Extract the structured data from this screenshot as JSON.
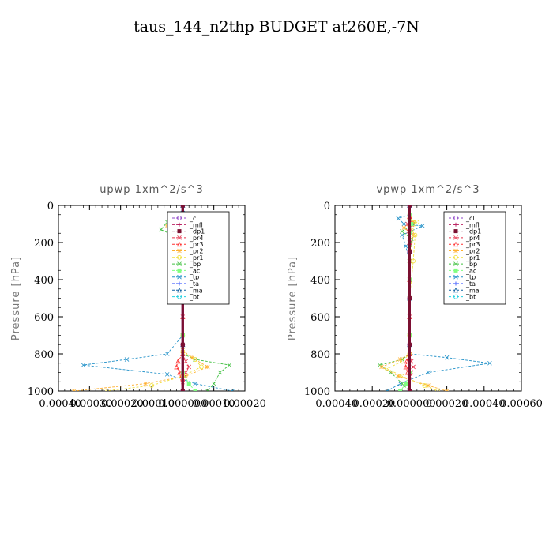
{
  "figure_title": "taus_144_n2thp  BUDGET at260E,-7N",
  "ylabel": "Pressure [hPa]",
  "legend": [
    {
      "name": "_cl",
      "color": "#8e44c8",
      "marker": "circle"
    },
    {
      "name": "_mfl",
      "color": "#b0004a",
      "marker": "plus"
    },
    {
      "name": "_dp1",
      "color": "#7a1030",
      "marker": "square"
    },
    {
      "name": "_pr4",
      "color": "#e8304a",
      "marker": "x"
    },
    {
      "name": "_pr3",
      "color": "#ff3030",
      "marker": "tri"
    },
    {
      "name": "_pr2",
      "color": "#ffb030",
      "marker": "star"
    },
    {
      "name": "_pr1",
      "color": "#f0e040",
      "marker": "circle"
    },
    {
      "name": "_bp",
      "color": "#40c040",
      "marker": "x"
    },
    {
      "name": "_ac",
      "color": "#80ff80",
      "marker": "square"
    },
    {
      "name": "_tp",
      "color": "#2090c8",
      "marker": "x"
    },
    {
      "name": "_ta",
      "color": "#2040ff",
      "marker": "plus"
    },
    {
      "name": "_ma",
      "color": "#1060a0",
      "marker": "tri"
    },
    {
      "name": "_bt",
      "color": "#20d0e0",
      "marker": "circle"
    }
  ],
  "chart_data": [
    {
      "type": "line",
      "title": "upwp   1xm^2/s^3",
      "ylabel": "Pressure [hPa]",
      "xlim": [
        -0.0004,
        0.0002
      ],
      "ylim": [
        1000,
        0
      ],
      "xticks": [
        "-0.00040",
        "-0.00030",
        "-0.00020",
        "-0.00010",
        "0.000000",
        "0.00010",
        "0.00020"
      ],
      "yticks": [
        "0",
        "200",
        "400",
        "600",
        "800",
        "1000"
      ],
      "series": [
        {
          "name": "_tp",
          "x": [
            0,
            8e-05,
            2e-05,
            -2e-05,
            0.0,
            -2e-05,
            0,
            0,
            0,
            -5e-05,
            -0.00018,
            -0.00032,
            -5e-05,
            4e-05,
            0.00016
          ],
          "y": [
            40,
            90,
            120,
            160,
            210,
            230,
            300,
            500,
            700,
            800,
            830,
            860,
            910,
            960,
            1000
          ]
        },
        {
          "name": "_bp",
          "x": [
            0,
            -5e-05,
            -7e-05,
            -2e-05,
            0,
            0,
            0,
            0,
            4e-05,
            0.00015,
            0.00012,
            0.0001,
            8e-05
          ],
          "y": [
            50,
            90,
            130,
            170,
            300,
            500,
            700,
            800,
            830,
            860,
            900,
            960,
            1000
          ]
        },
        {
          "name": "_pr2",
          "x": [
            0,
            -3e-05,
            -5e-05,
            -1e-05,
            0,
            0,
            0,
            0,
            3e-05,
            8e-05,
            1e-05,
            -0.00012,
            -0.00035
          ],
          "y": [
            50,
            80,
            110,
            150,
            300,
            500,
            700,
            780,
            820,
            870,
            920,
            960,
            1000
          ]
        },
        {
          "name": "_pr1",
          "x": [
            0,
            -2e-05,
            -4e-05,
            -1e-05,
            0,
            0,
            0,
            0,
            4e-05,
            6e-05,
            0.0,
            -0.0001,
            -0.00025
          ],
          "y": [
            60,
            90,
            120,
            150,
            300,
            500,
            700,
            790,
            830,
            870,
            920,
            970,
            1000
          ]
        },
        {
          "name": "_pr3",
          "x": [
            0,
            -1e-05,
            -5e-06,
            0,
            0,
            0,
            0,
            -1.5e-05,
            -2e-05,
            -1e-05,
            0
          ],
          "y": [
            60,
            100,
            140,
            200,
            400,
            600,
            800,
            840,
            870,
            900,
            1000
          ]
        },
        {
          "name": "_pr4",
          "x": [
            0,
            1e-05,
            5e-06,
            0,
            0,
            0,
            0,
            1e-05,
            2e-05,
            1e-05,
            0
          ],
          "y": [
            60,
            100,
            140,
            200,
            400,
            600,
            800,
            840,
            870,
            900,
            1000
          ]
        },
        {
          "name": "_ac",
          "x": [
            0,
            -5e-06,
            0,
            0,
            0,
            0,
            2e-05,
            4e-05
          ],
          "y": [
            50,
            100,
            150,
            400,
            700,
            900,
            960,
            1000
          ]
        },
        {
          "name": "_ma",
          "x": [
            0,
            0,
            0,
            0,
            0
          ],
          "y": [
            0,
            250,
            500,
            750,
            1000
          ]
        },
        {
          "name": "_cl",
          "x": [
            0,
            0,
            0,
            0,
            0
          ],
          "y": [
            0,
            250,
            500,
            750,
            1000
          ]
        },
        {
          "name": "_mfl",
          "x": [
            0,
            0,
            0,
            0,
            0
          ],
          "y": [
            0,
            250,
            500,
            750,
            1000
          ]
        },
        {
          "name": "_dp1",
          "x": [
            0,
            0,
            0,
            0,
            0
          ],
          "y": [
            0,
            250,
            500,
            750,
            1000
          ]
        }
      ]
    },
    {
      "type": "line",
      "title": "vpwp   1xm^2/s^3",
      "ylabel": "Pressure [hPa]",
      "xlim": [
        -0.0004,
        0.0006
      ],
      "ylim": [
        1000,
        0
      ],
      "xticks": [
        "-0.00040",
        "-0.00020",
        "-0.000000",
        "0.00020",
        "0.00040",
        "0.00060"
      ],
      "yticks": [
        "0",
        "200",
        "400",
        "600",
        "800",
        "1000"
      ],
      "series": [
        {
          "name": "_tp",
          "x": [
            0,
            -6e-05,
            -3e-05,
            7e-05,
            -4e-05,
            -2e-05,
            0,
            0,
            0,
            0,
            0.0002,
            0.00043,
            0.0001,
            -5e-05,
            -0.00012
          ],
          "y": [
            50,
            70,
            100,
            110,
            160,
            220,
            300,
            500,
            700,
            800,
            820,
            850,
            900,
            960,
            1000
          ]
        },
        {
          "name": "_bp",
          "x": [
            0,
            2e-05,
            -4e-05,
            1e-05,
            0,
            0,
            0,
            0,
            -4e-05,
            -0.00016,
            -0.0001,
            -4e-05,
            0
          ],
          "y": [
            60,
            100,
            140,
            180,
            300,
            500,
            700,
            800,
            830,
            860,
            900,
            960,
            1000
          ]
        },
        {
          "name": "_pr2",
          "x": [
            0,
            2e-05,
            -3e-05,
            2e-05,
            0,
            0,
            0,
            0,
            -5e-05,
            -0.00015,
            -6e-05,
            0.0001,
            0.0002
          ],
          "y": [
            60,
            90,
            120,
            160,
            300,
            500,
            700,
            800,
            830,
            870,
            920,
            970,
            1000
          ]
        },
        {
          "name": "_pr1",
          "x": [
            0,
            4e-05,
            1e-05,
            3e-05,
            2e-05,
            0,
            0,
            0,
            -4e-05,
            -0.00012,
            -4e-05,
            8e-05,
            0.00015
          ],
          "y": [
            70,
            90,
            130,
            160,
            300,
            500,
            700,
            800,
            840,
            880,
            920,
            970,
            1000
          ]
        },
        {
          "name": "_pr3",
          "x": [
            0,
            1e-05,
            5e-06,
            0,
            0,
            0,
            0,
            -1.5e-05,
            -2e-05,
            -1e-05,
            0
          ],
          "y": [
            60,
            100,
            140,
            200,
            400,
            600,
            800,
            840,
            870,
            900,
            1000
          ]
        },
        {
          "name": "_pr4",
          "x": [
            0,
            -1e-05,
            -5e-06,
            0,
            0,
            0,
            0,
            1e-05,
            2e-05,
            1e-05,
            0
          ],
          "y": [
            60,
            100,
            140,
            200,
            400,
            600,
            800,
            840,
            870,
            900,
            1000
          ]
        },
        {
          "name": "_ac",
          "x": [
            0,
            1e-05,
            0,
            0,
            0,
            0,
            -2e-05,
            -5e-05
          ],
          "y": [
            50,
            100,
            150,
            400,
            700,
            900,
            960,
            1000
          ]
        },
        {
          "name": "_ma",
          "x": [
            0,
            0,
            0,
            0,
            0
          ],
          "y": [
            0,
            250,
            500,
            750,
            1000
          ]
        },
        {
          "name": "_cl",
          "x": [
            0,
            0,
            0,
            0,
            0
          ],
          "y": [
            0,
            250,
            500,
            750,
            1000
          ]
        },
        {
          "name": "_mfl",
          "x": [
            0,
            0,
            0,
            0,
            0
          ],
          "y": [
            0,
            250,
            500,
            750,
            1000
          ]
        },
        {
          "name": "_dp1",
          "x": [
            0,
            0,
            0,
            0,
            0
          ],
          "y": [
            0,
            250,
            500,
            750,
            1000
          ]
        }
      ]
    }
  ]
}
